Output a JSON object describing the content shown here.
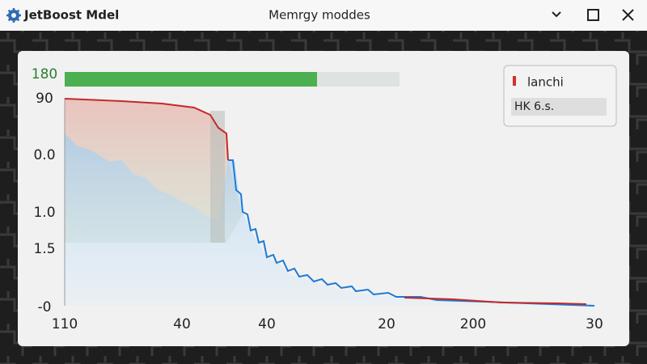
{
  "window": {
    "app_name": "JetBoost Mdel",
    "title": "Memrgy moddes"
  },
  "chart": {
    "y_labels": [
      "180",
      "90",
      "0.0",
      "1.0",
      "1.5",
      "-0"
    ],
    "x_labels": [
      "110",
      "40",
      "40",
      "20",
      "200",
      "30"
    ]
  },
  "legend": {
    "item": "lanchi",
    "field": "HK 6.s."
  }
}
